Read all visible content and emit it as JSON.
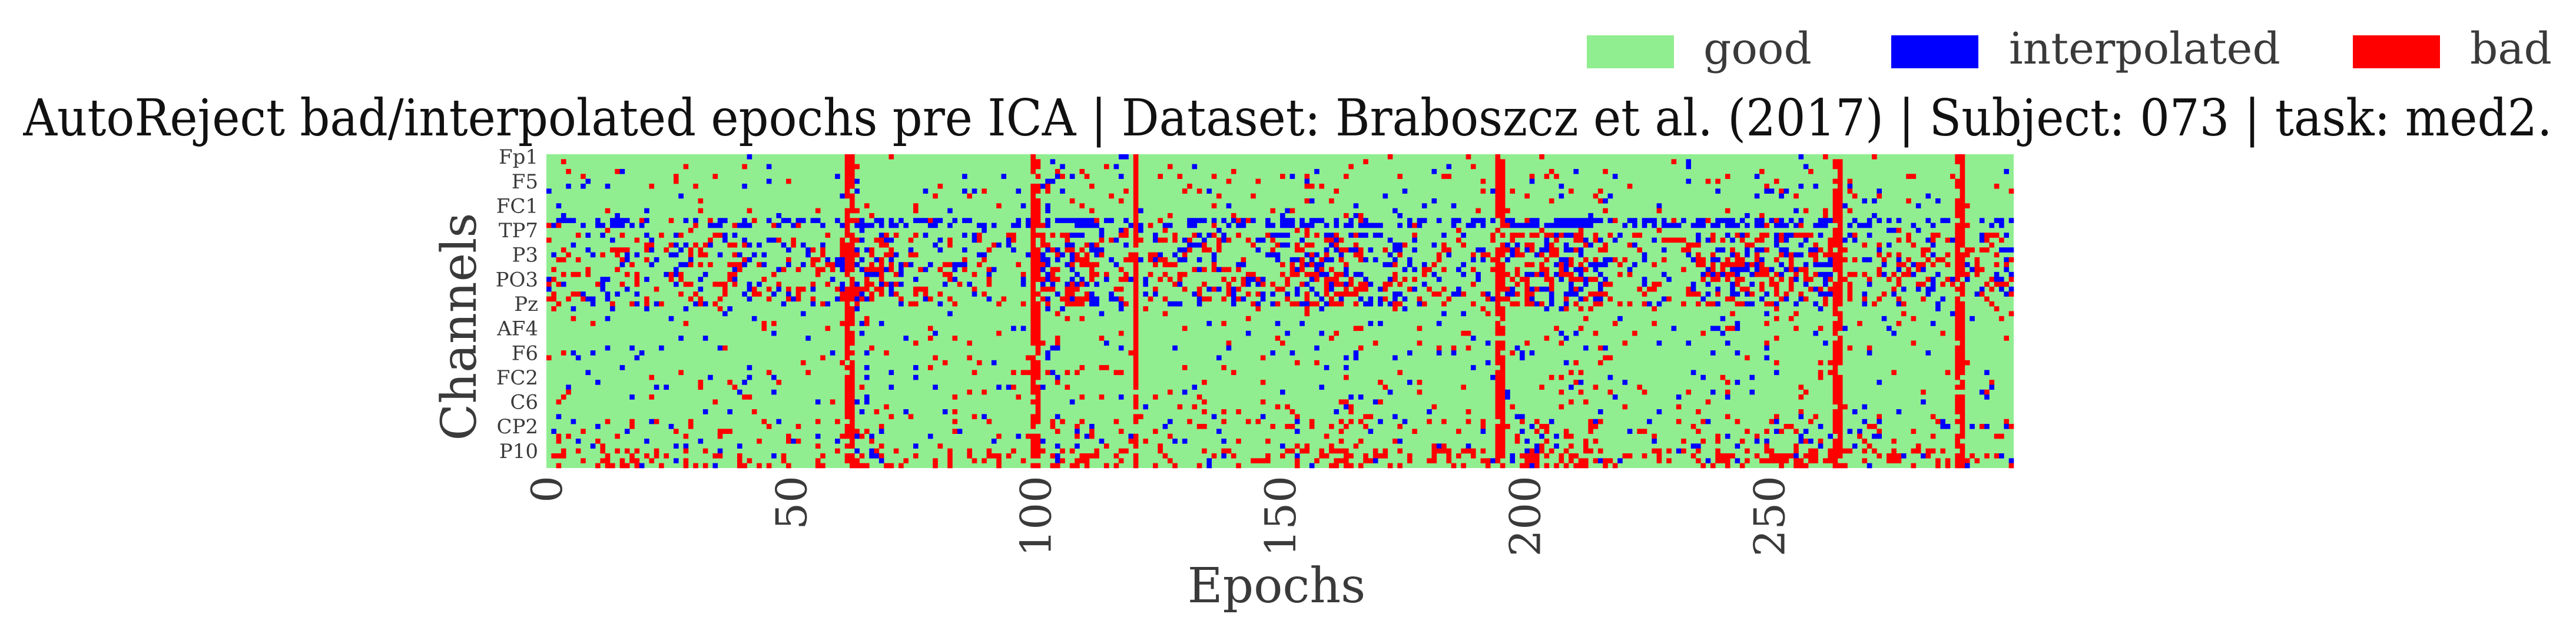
{
  "chart_data": {
    "type": "heatmap",
    "title": "AutoReject bad/interpolated epochs pre ICA | Dataset: Braboszcz et al. (2017) | Subject: 073 | task: med2.",
    "xlabel": "Epochs",
    "ylabel": "Channels",
    "x_ticks": [
      "0",
      "50",
      "100",
      "150",
      "200",
      "250"
    ],
    "x_tick_values": [
      0,
      50,
      100,
      150,
      200,
      250
    ],
    "xlim": [
      0,
      300
    ],
    "y_ticks": [
      "Fp1",
      "F5",
      "FC1",
      "TP7",
      "P3",
      "PO3",
      "Pz",
      "AF4",
      "F6",
      "FC2",
      "C6",
      "CP2",
      "P10"
    ],
    "n_channels": 64,
    "n_epochs": 300,
    "legend": {
      "placement": "top-right",
      "entries": [
        {
          "label": "good",
          "color": "#90ee90"
        },
        {
          "label": "interpolated",
          "color": "#0000ff"
        },
        {
          "label": "bad",
          "color": "#ff0000"
        }
      ]
    },
    "bad_epochs": [
      61,
      62,
      99,
      100,
      120,
      194,
      195,
      263,
      264,
      288,
      289
    ],
    "channel_bands": [
      {
        "from": 0,
        "to": 3,
        "state": "mostly good"
      },
      {
        "from": 13,
        "to": 14,
        "state": "frequent interpolated"
      },
      {
        "from": 16,
        "to": 30,
        "state": "frequent bad and interpolated"
      },
      {
        "from": 60,
        "to": 63,
        "state": "frequent bad"
      }
    ]
  }
}
